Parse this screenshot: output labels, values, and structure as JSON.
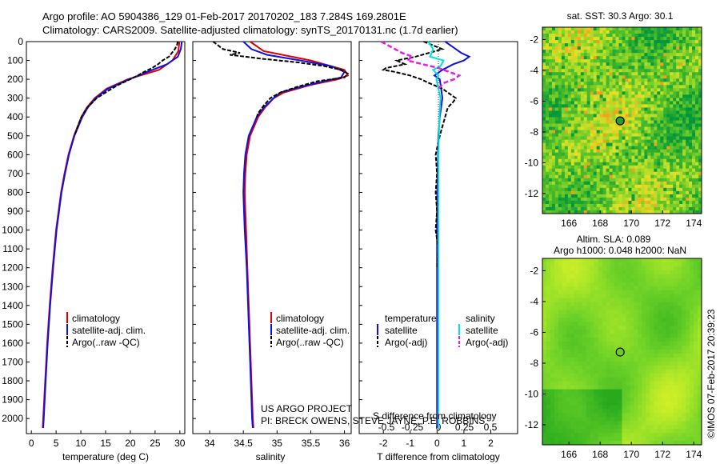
{
  "header": {
    "line1": "Argo profile: AO 5904386_129 01-Feb-2017 20170202_183 7.284S 169.2801E",
    "line2": "Climatology: CARS2009. Satellite-adjusted climatology: synTS_20170131.nc (1.7d earlier)"
  },
  "colors": {
    "climatology": "#e00000",
    "satellite": "#1010e0",
    "argo": "#000000",
    "sat_salinity": "#00e0e0",
    "argo_salinity": "#e020e0"
  },
  "chart_data": [
    {
      "type": "line",
      "name": "temperature-profile",
      "xlabel": "temperature (deg C)",
      "ylabel": "",
      "xlim": [
        -1,
        31
      ],
      "ylim": [
        2080,
        0
      ],
      "y_reversed": true,
      "xticks": [
        "0",
        "5",
        "10",
        "15",
        "20",
        "25",
        "30"
      ],
      "yticks": [
        "0",
        "100",
        "200",
        "300",
        "400",
        "500",
        "600",
        "700",
        "800",
        "900",
        "1000",
        "1100",
        "1200",
        "1300",
        "1400",
        "1500",
        "1600",
        "1700",
        "1800",
        "1900",
        "2000"
      ],
      "legend": [
        "climatology",
        "satellite-adj. clim.",
        "Argo(..raw -QC)"
      ],
      "series": [
        {
          "name": "climatology",
          "y": [
            0,
            50,
            100,
            150,
            200,
            250,
            300,
            350,
            400,
            500,
            600,
            700,
            800,
            1000,
            1200,
            1400,
            1600,
            1800,
            2000,
            2050
          ],
          "x": [
            29.9,
            29.7,
            28.5,
            25.8,
            19.5,
            15.2,
            12.8,
            11.2,
            10.1,
            8.6,
            7.5,
            6.7,
            6.0,
            5.0,
            4.3,
            3.7,
            3.2,
            2.8,
            2.4,
            2.3
          ]
        },
        {
          "name": "satellite-adj. clim.",
          "y": [
            0,
            40,
            80,
            120,
            160,
            200,
            250,
            300,
            350,
            400,
            500,
            600,
            700,
            800,
            1000,
            1200,
            1400,
            1600,
            1800,
            2000,
            2050
          ],
          "x": [
            30.4,
            30.2,
            29.6,
            27.4,
            23.5,
            19.8,
            15.5,
            13.0,
            11.4,
            10.3,
            8.7,
            7.6,
            6.8,
            6.1,
            5.1,
            4.4,
            3.8,
            3.3,
            2.9,
            2.5,
            2.4
          ]
        },
        {
          "name": "Argo(..raw -QC)",
          "y": [
            0,
            20,
            40,
            60,
            80,
            100,
            120,
            140,
            160,
            180,
            200,
            230,
            260,
            300,
            350,
            400,
            450,
            500
          ],
          "x": [
            29.6,
            29.4,
            29.0,
            28.4,
            27.8,
            26.5,
            25.6,
            24.4,
            22.8,
            21.5,
            20.0,
            17.5,
            15.6,
            13.2,
            11.3,
            10.1,
            9.4,
            8.7
          ]
        }
      ]
    },
    {
      "type": "line",
      "name": "salinity-profile",
      "xlabel": "salinity",
      "xlim": [
        33.75,
        36.1
      ],
      "ylim": [
        2080,
        0
      ],
      "y_reversed": true,
      "xticks": [
        "34",
        "34.5",
        "35",
        "35.5",
        "36"
      ],
      "legend": [
        "climatology",
        "satellite-adj. clim.",
        "Argo(..raw -QC)"
      ],
      "series": [
        {
          "name": "climatology",
          "y": [
            0,
            50,
            100,
            150,
            180,
            200,
            230,
            270,
            300,
            350,
            400,
            500,
            600,
            700,
            800,
            900,
            1000,
            1200,
            1400,
            1600,
            1800,
            2000,
            2050
          ],
          "x": [
            34.6,
            34.8,
            35.5,
            36.0,
            36.05,
            35.9,
            35.5,
            35.1,
            34.95,
            34.82,
            34.72,
            34.6,
            34.55,
            34.53,
            34.52,
            34.53,
            34.54,
            34.56,
            34.58,
            34.6,
            34.62,
            34.64,
            34.65
          ]
        },
        {
          "name": "satellite-adj. clim.",
          "y": [
            0,
            40,
            70,
            100,
            130,
            160,
            190,
            210,
            240,
            270,
            300,
            350,
            400,
            500,
            600,
            700,
            800,
            900,
            1000,
            1200,
            1400,
            1600,
            1800,
            2000,
            2050
          ],
          "x": [
            34.5,
            34.62,
            34.85,
            35.35,
            35.8,
            36.0,
            35.95,
            35.7,
            35.35,
            35.05,
            34.95,
            34.8,
            34.7,
            34.58,
            34.53,
            34.51,
            34.5,
            34.51,
            34.52,
            34.55,
            34.57,
            34.59,
            34.61,
            34.63,
            34.64
          ]
        },
        {
          "name": "Argo(..raw -QC)",
          "y": [
            0,
            40,
            60,
            70,
            90,
            110,
            130,
            150,
            170,
            190,
            210,
            240,
            270,
            300,
            340,
            380,
            400
          ],
          "x": [
            34.05,
            34.2,
            34.45,
            34.3,
            34.75,
            35.3,
            35.7,
            35.95,
            36.05,
            36.0,
            35.6,
            35.3,
            35.05,
            34.9,
            34.8,
            34.72,
            34.7
          ]
        }
      ]
    },
    {
      "type": "line",
      "name": "difference-from-climatology",
      "xlabel": "T difference from climatology",
      "xlabel_top": "S difference from climatology",
      "xlim": [
        -2.9,
        3.0
      ],
      "ylim": [
        2080,
        0
      ],
      "y_reversed": true,
      "xticks": [
        "-2",
        "-1",
        "0",
        "1",
        "2"
      ],
      "xticks_top": [
        "-0.5",
        "-0.25",
        "0",
        "0.25",
        "0.5"
      ],
      "legend_temperature_title": "temperature",
      "legend_salinity_title": "salinity",
      "legend_temperature": [
        "satellite",
        "Argo(-adj)"
      ],
      "legend_salinity": [
        "satellite",
        "Argo(-adj)"
      ],
      "series": [
        {
          "name": "T satellite",
          "y": [
            0,
            30,
            60,
            80,
            100,
            120,
            150,
            180,
            200,
            250,
            300,
            350,
            400,
            500,
            700,
            900,
            1100,
            1300,
            1500,
            1700,
            1900,
            2050
          ],
          "x": [
            0.3,
            0.6,
            0.9,
            1.2,
            1.0,
            0.6,
            0.2,
            -0.1,
            0.1,
            0.15,
            0.2,
            0.15,
            0.1,
            0.05,
            0.02,
            0.0,
            0.0,
            0.0,
            0.0,
            0.0,
            0.0,
            0.0
          ]
        },
        {
          "name": "T Argo(-adj)",
          "y": [
            0,
            40,
            80,
            100,
            120,
            140,
            150,
            160,
            180,
            200,
            220,
            250,
            280,
            300,
            320,
            350,
            400,
            450,
            500,
            600,
            700,
            800,
            900,
            1000,
            1100,
            1200
          ],
          "x": [
            -0.5,
            0.2,
            -0.8,
            -1.5,
            -1.2,
            -1.9,
            -2.0,
            -1.6,
            -1.0,
            -0.6,
            -0.3,
            0.2,
            0.5,
            0.7,
            0.6,
            0.4,
            0.3,
            0.2,
            0.1,
            -0.05,
            0.0,
            -0.05,
            0.0,
            -0.05,
            0.05,
            0.0
          ]
        },
        {
          "name": "S satellite",
          "y": [
            0,
            40,
            80,
            100,
            130,
            150,
            180,
            200,
            250,
            300,
            400,
            600,
            800,
            1000,
            1500,
            2050
          ],
          "x": [
            -0.1,
            -0.05,
            -0.08,
            0.05,
            0.02,
            -0.05,
            0.0,
            -0.02,
            0.0,
            0.02,
            0.01,
            0.0,
            0.0,
            0.0,
            0.0,
            0.0
          ]
        },
        {
          "name": "S Argo(-adj)",
          "y": [
            0,
            30,
            60,
            80,
            100,
            120,
            140,
            160,
            180,
            200,
            220,
            250
          ],
          "x": [
            -0.55,
            -0.45,
            -0.35,
            -0.25,
            -0.3,
            -0.15,
            0.0,
            0.1,
            0.2,
            0.15,
            0.05,
            0.0
          ]
        }
      ]
    },
    {
      "type": "heatmap",
      "name": "satellite-sst-map",
      "title": "sat. SST: 30.3  Argo: 30.1",
      "xticks": [
        "166",
        "168",
        "170",
        "172",
        "174"
      ],
      "yticks": [
        "-2",
        "-4",
        "-6",
        "-8",
        "-10",
        "-12"
      ],
      "xlim": [
        164.3,
        174.5
      ],
      "ylim": [
        -13.3,
        -1.2
      ],
      "marker": {
        "lon": 169.28,
        "lat": -7.28
      }
    },
    {
      "type": "heatmap",
      "name": "altimetry-sla-map",
      "title_line1": "Altim. SLA: 0.089",
      "title_line2": "Argo h1000: 0.048 h2000: NaN",
      "xticks": [
        "166",
        "168",
        "170",
        "172",
        "174"
      ],
      "yticks": [
        "-2",
        "-4",
        "-6",
        "-8",
        "-10",
        "-12"
      ],
      "xlim": [
        164.3,
        174.5
      ],
      "ylim": [
        -13.3,
        -1.2
      ],
      "marker": {
        "lon": 169.28,
        "lat": -7.28
      }
    }
  ],
  "credits": {
    "project": "US ARGO PROJECT",
    "pi": "PI: BRECK OWENS, STEVE JAYNE, P.E. ROBBINS",
    "imos": "©IMOS 07-Feb-2017 20:39:23"
  }
}
